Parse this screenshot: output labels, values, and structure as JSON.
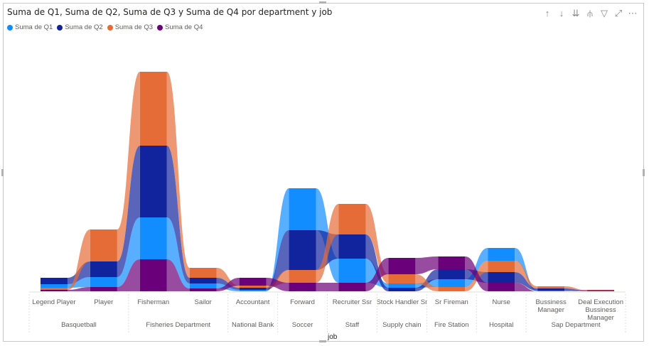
{
  "visual": {
    "title": "Suma de Q1, Suma de Q2, Suma de Q3 y Suma de Q4 por department y job",
    "icons": [
      {
        "name": "drill-up-icon",
        "glyph": "↑"
      },
      {
        "name": "drill-down-icon",
        "glyph": "↓"
      },
      {
        "name": "expand-next-level-icon",
        "glyph": "⇊"
      },
      {
        "name": "expand-all-icon",
        "glyph": "⫛"
      },
      {
        "name": "filter-icon",
        "glyph": "▽"
      },
      {
        "name": "focus-mode-icon",
        "glyph": "⤢"
      },
      {
        "name": "more-options-icon",
        "glyph": "⋯"
      }
    ]
  },
  "chart_data": {
    "type": "area",
    "style": "ribbon",
    "title": "Suma de Q1, Suma de Q2, Suma de Q3 y Suma de Q4 por department y job",
    "xlabel": "job",
    "ylabel": "",
    "grid": false,
    "legend_position": "top-left",
    "categories": [
      {
        "job": "Legend Player",
        "department": "Basquetball"
      },
      {
        "job": "Player",
        "department": "Basquetball"
      },
      {
        "job": "Fisherman",
        "department": "Fisheries Department"
      },
      {
        "job": "Sailor",
        "department": "Fisheries Department"
      },
      {
        "job": "Accountant",
        "department": "National Bank"
      },
      {
        "job": "Forward",
        "department": "Soccer"
      },
      {
        "job": "Recruiter Ssr",
        "department": "Staff"
      },
      {
        "job": "Stock Handler Sr",
        "department": "Supply chain"
      },
      {
        "job": "Sr Fireman",
        "department": "Fire Station"
      },
      {
        "job": "Nurse",
        "department": "Hospital"
      },
      {
        "job": "Bussiness Manager",
        "department": "Sap Department"
      },
      {
        "job": "Deal Execution Bussiness Manager",
        "department": "Sap Department"
      }
    ],
    "departments": [
      {
        "name": "Basquetball",
        "span": 2
      },
      {
        "name": "Fisheries Department",
        "span": 2
      },
      {
        "name": "National Bank",
        "span": 1
      },
      {
        "name": "Soccer",
        "span": 1
      },
      {
        "name": "Staff",
        "span": 1
      },
      {
        "name": "Supply chain",
        "span": 1
      },
      {
        "name": "Fire Station",
        "span": 1
      },
      {
        "name": "Hospital",
        "span": 1
      },
      {
        "name": "Sap Department",
        "span": 2
      }
    ],
    "series": [
      {
        "name": "Suma de Q1",
        "color": "#118dff",
        "values": [
          5,
          14,
          59,
          7,
          2,
          59,
          34,
          6,
          11,
          18,
          1,
          0.5
        ]
      },
      {
        "name": "Suma de Q2",
        "color": "#12239e",
        "values": [
          9,
          22,
          101,
          8,
          3,
          56,
          34,
          5,
          14,
          15,
          3,
          0.5
        ]
      },
      {
        "name": "Suma de Q3",
        "color": "#e66c37",
        "values": [
          3,
          45,
          104,
          14,
          3,
          18,
          43,
          13,
          6,
          16,
          3,
          0.5
        ]
      },
      {
        "name": "Suma de Q4",
        "color": "#6b007b",
        "values": [
          2,
          6,
          45,
          4,
          11,
          12,
          12,
          23,
          18,
          12,
          0,
          0.5
        ]
      }
    ]
  }
}
